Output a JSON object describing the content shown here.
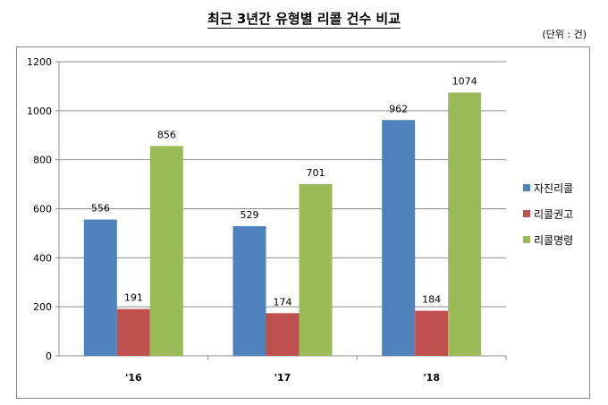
{
  "header": {
    "title": "최근 3년간 유형별 리콜 건수 비교",
    "unit": "(단위 : 건)"
  },
  "chart_data": {
    "type": "bar",
    "categories": [
      "'16",
      "'17",
      "'18"
    ],
    "series": [
      {
        "name": "자진리콜",
        "color": "#4f81bd",
        "values": [
          556,
          529,
          962
        ]
      },
      {
        "name": "리콜권고",
        "color": "#c0504d",
        "values": [
          191,
          174,
          184
        ]
      },
      {
        "name": "리콜명령",
        "color": "#9bbb59",
        "values": [
          856,
          701,
          1074
        ]
      }
    ],
    "ylim": [
      0,
      1200
    ],
    "yticks": [
      0,
      200,
      400,
      600,
      800,
      1000,
      1200
    ],
    "grid": true,
    "legend": "right"
  }
}
